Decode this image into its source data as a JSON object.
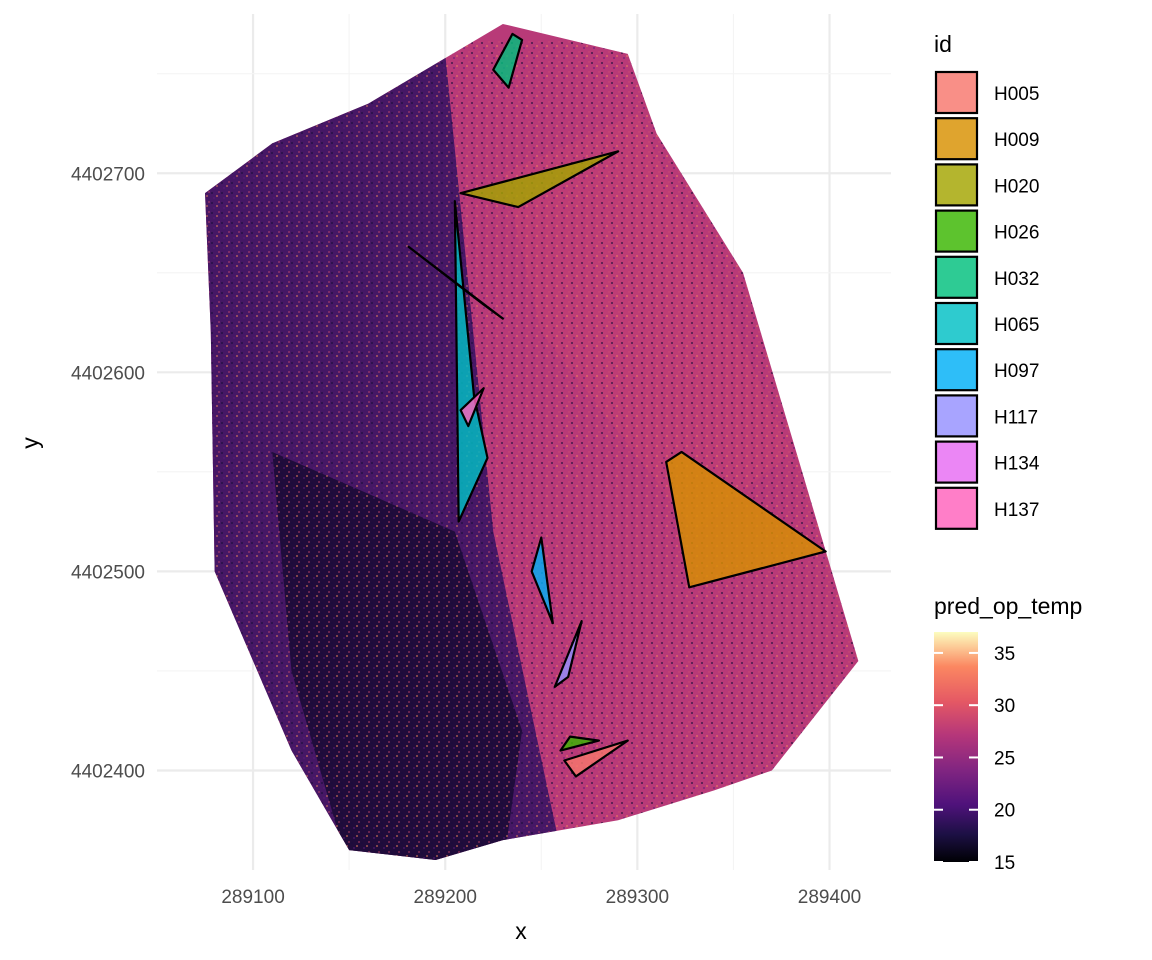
{
  "chart_data": {
    "type": "heatmap",
    "title": "",
    "xlabel": "x",
    "ylabel": "y",
    "xlim": [
      289050,
      289432
    ],
    "ylim": [
      4402350,
      4402780
    ],
    "x_ticks": [
      289100,
      289200,
      289300,
      289400
    ],
    "x_tick_labels": [
      "289100",
      "289200",
      "289300",
      "289400"
    ],
    "y_ticks": [
      4402400,
      4402500,
      4402600,
      4402700
    ],
    "y_tick_labels": [
      "4402400",
      "4402500",
      "4402600",
      "4402700"
    ],
    "grid": true,
    "raster": {
      "variable": "pred_op_temp",
      "value_range": [
        15,
        37
      ],
      "colorbar_ticks": [
        15,
        20,
        25,
        30,
        35
      ],
      "colorbar_tick_labels": [
        "15",
        "20",
        "25",
        "30",
        "35"
      ],
      "extent_outline": [
        [
          289075,
          4402690
        ],
        [
          289110,
          4402715
        ],
        [
          289160,
          4402735
        ],
        [
          289230,
          4402775
        ],
        [
          289295,
          4402760
        ],
        [
          289310,
          4402720
        ],
        [
          289355,
          4402650
        ],
        [
          289415,
          4402455
        ],
        [
          289370,
          4402400
        ],
        [
          289340,
          4402390
        ],
        [
          289290,
          4402375
        ],
        [
          289230,
          4402365
        ],
        [
          289195,
          4402355
        ],
        [
          289150,
          4402360
        ],
        [
          289120,
          4402410
        ],
        [
          289080,
          4402500
        ],
        [
          289078,
          4402620
        ]
      ]
    },
    "legend": {
      "title": "id",
      "position": "right",
      "entries": [
        {
          "label": "H005",
          "color": "#F8766D"
        },
        {
          "label": "H009",
          "color": "#D89000"
        },
        {
          "label": "H020",
          "color": "#A3A500"
        },
        {
          "label": "H026",
          "color": "#39B600"
        },
        {
          "label": "H032",
          "color": "#00BF7D"
        },
        {
          "label": "H065",
          "color": "#00BFC4"
        },
        {
          "label": "H097",
          "color": "#00B0F6"
        },
        {
          "label": "H117",
          "color": "#9590FF"
        },
        {
          "label": "H134",
          "color": "#E76BF3"
        },
        {
          "label": "H137",
          "color": "#FF62BC"
        }
      ]
    },
    "colorbar_title": "pred_op_temp",
    "polygons": [
      {
        "id": "H005",
        "color": "#F8766D",
        "points": [
          [
            289262,
            4402405
          ],
          [
            289295,
            4402415
          ],
          [
            289268,
            4402397
          ]
        ]
      },
      {
        "id": "H009",
        "color": "#D89000",
        "points": [
          [
            289315,
            4402555
          ],
          [
            289323,
            4402560
          ],
          [
            289398,
            4402510
          ],
          [
            289327,
            4402492
          ]
        ]
      },
      {
        "id": "H020",
        "color": "#A3A500",
        "points": [
          [
            289208,
            4402690
          ],
          [
            289238,
            4402683
          ],
          [
            289290,
            4402711
          ]
        ]
      },
      {
        "id": "H026",
        "color": "#39B600",
        "points": [
          [
            289260,
            4402410
          ],
          [
            289265,
            4402417
          ],
          [
            289280,
            4402415
          ]
        ]
      },
      {
        "id": "H032",
        "color": "#00BF7D",
        "points": [
          [
            289225,
            4402752
          ],
          [
            289235,
            4402770
          ],
          [
            289240,
            4402767
          ],
          [
            289233,
            4402743
          ]
        ]
      },
      {
        "id": "H065",
        "color": "#00BFC4",
        "points": [
          [
            289205,
            4402686
          ],
          [
            289215,
            4402588
          ],
          [
            289222,
            4402557
          ],
          [
            289207,
            4402525
          ]
        ]
      },
      {
        "id": "H097",
        "color": "#00B0F6",
        "points": [
          [
            289245,
            4402500
          ],
          [
            289250,
            4402517
          ],
          [
            289256,
            4402474
          ]
        ]
      },
      {
        "id": "H117",
        "color": "#9590FF",
        "points": [
          [
            289257,
            4402442
          ],
          [
            289271,
            4402475
          ],
          [
            289264,
            4402447
          ]
        ]
      },
      {
        "id": "H134",
        "color": "#E76BF3",
        "points": [
          [
            289181,
            4402663
          ],
          [
            289220,
            4402634
          ],
          [
            289230,
            4402627
          ]
        ]
      },
      {
        "id": "H137",
        "color": "#FF62BC",
        "points": [
          [
            289208,
            4402581
          ],
          [
            289220,
            4402592
          ],
          [
            289212,
            4402573
          ]
        ]
      }
    ]
  }
}
